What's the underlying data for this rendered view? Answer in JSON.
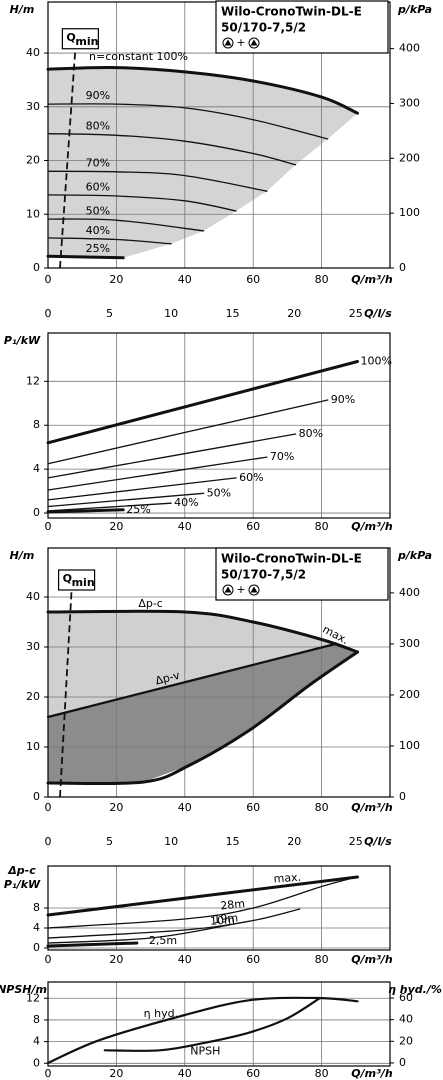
{
  "chart_data": [
    {
      "type": "line",
      "title": "Wilo-CronoTwin-DL-E",
      "subtitle": "50/170-7,5/2",
      "symbol_join": "+",
      "ylabel": "H/m",
      "y2label": "p/kPa",
      "xlabel": "Q/m³/h",
      "x2label": "Q/l/s",
      "xlim": [
        0,
        100
      ],
      "xticks": [
        0,
        20,
        40,
        60,
        80
      ],
      "x2lim": [
        0,
        27.78
      ],
      "x2ticks": [
        0,
        5,
        10,
        15,
        20,
        25
      ],
      "ylim": [
        0,
        49.5
      ],
      "yticks": [
        0,
        10,
        20,
        30,
        40
      ],
      "y2lim": [
        0,
        485
      ],
      "y2ticks": [
        0,
        100,
        200,
        300,
        400
      ],
      "grid": true,
      "qmin": {
        "label": "Q",
        "sub": "min",
        "x": [
          3.5,
          8
        ],
        "y": [
          0,
          40.8
        ]
      },
      "areas": [
        {
          "color": "#d4d4d4",
          "x": [
            0,
            20,
            40,
            60,
            80,
            90.5,
            81.8,
            72.4,
            64,
            55,
            45.5,
            36,
            22,
            0
          ],
          "values": [
            37,
            37.3,
            36.5,
            34.8,
            31.8,
            28.8,
            24,
            19.2,
            14.3,
            10.6,
            6.9,
            4.5,
            1.9,
            2.2
          ]
        }
      ],
      "series": [
        {
          "name": "n=constant 100%",
          "color": "#111111",
          "width": 3,
          "x": [
            0,
            20,
            40,
            60,
            80,
            90.5
          ],
          "values": [
            37,
            37.3,
            36.5,
            34.8,
            31.8,
            28.8
          ]
        },
        {
          "name": "90%",
          "color": "#111111",
          "width": 1.3,
          "x": [
            0,
            20,
            40,
            60,
            81.8
          ],
          "values": [
            30.5,
            30.5,
            29.8,
            27.6,
            24
          ]
        },
        {
          "name": "80%",
          "color": "#111111",
          "width": 1.3,
          "x": [
            0,
            20,
            40,
            60,
            72.4
          ],
          "values": [
            25,
            24.7,
            23.6,
            21.3,
            19.2
          ]
        },
        {
          "name": "70%",
          "color": "#111111",
          "width": 1.3,
          "x": [
            0,
            20,
            40,
            64
          ],
          "values": [
            18,
            17.9,
            17.2,
            14.3
          ]
        },
        {
          "name": "60%",
          "color": "#111111",
          "width": 1.3,
          "x": [
            0,
            20,
            40,
            55
          ],
          "values": [
            13.6,
            13.4,
            12.5,
            10.6
          ]
        },
        {
          "name": "50%",
          "color": "#111111",
          "width": 1.3,
          "x": [
            0,
            20,
            45.5
          ],
          "values": [
            9.1,
            8.9,
            6.9
          ]
        },
        {
          "name": "40%",
          "color": "#111111",
          "width": 1.3,
          "x": [
            0,
            20,
            36
          ],
          "values": [
            5.6,
            5.3,
            4.5
          ]
        },
        {
          "name": "25%",
          "color": "#111111",
          "width": 3,
          "x": [
            0,
            22
          ],
          "values": [
            2.2,
            1.9
          ]
        }
      ]
    },
    {
      "type": "line",
      "ylabel": "P₁/kW",
      "xlabel": "Q/m³/h",
      "xlim": [
        0,
        100
      ],
      "xticks": [
        0,
        20,
        40,
        60,
        80
      ],
      "ylim": [
        -0.45,
        16.4
      ],
      "yticks": [
        0,
        4,
        8,
        12
      ],
      "grid": true,
      "series": [
        {
          "name": "100%",
          "color": "#111111",
          "width": 3,
          "x": [
            0,
            90.5
          ],
          "values": [
            6.4,
            13.8
          ]
        },
        {
          "name": "90%",
          "color": "#111111",
          "width": 1.3,
          "x": [
            0,
            81.8
          ],
          "values": [
            4.5,
            10.3
          ]
        },
        {
          "name": "80%",
          "color": "#111111",
          "width": 1.3,
          "x": [
            0,
            72.4
          ],
          "values": [
            3.2,
            7.2
          ]
        },
        {
          "name": "70%",
          "color": "#111111",
          "width": 1.3,
          "x": [
            0,
            64
          ],
          "values": [
            2.1,
            5.1
          ]
        },
        {
          "name": "60%",
          "color": "#111111",
          "width": 1.3,
          "x": [
            0,
            55
          ],
          "values": [
            1.2,
            3.2
          ]
        },
        {
          "name": "50%",
          "color": "#111111",
          "width": 1.3,
          "x": [
            0,
            45.5
          ],
          "values": [
            0.6,
            1.8
          ]
        },
        {
          "name": "40%",
          "color": "#111111",
          "width": 1.3,
          "x": [
            0,
            36
          ],
          "values": [
            0.2,
            0.9
          ]
        },
        {
          "name": "25%",
          "color": "#111111",
          "width": 3,
          "x": [
            0,
            22
          ],
          "values": [
            0.1,
            0.3
          ]
        }
      ]
    },
    {
      "type": "line",
      "title": "Wilo-CronoTwin-DL-E",
      "subtitle": "50/170-7,5/2",
      "symbol_join": "+",
      "ylabel": "H/m",
      "y2label": "p/kPa",
      "xlabel": "Q/m³/h",
      "x2label": "Q/l/s",
      "annotation": "max.",
      "xlim": [
        0,
        100
      ],
      "xticks": [
        0,
        20,
        40,
        60,
        80
      ],
      "x2lim": [
        0,
        27.78
      ],
      "x2ticks": [
        0,
        5,
        10,
        15,
        20,
        25
      ],
      "ylim": [
        0,
        49.8
      ],
      "yticks": [
        0,
        10,
        20,
        30,
        40
      ],
      "y2lim": [
        0,
        488
      ],
      "y2ticks": [
        0,
        100,
        200,
        300,
        400
      ],
      "grid": true,
      "qmin": {
        "label": "Q",
        "sub": "min",
        "x": [
          3.5,
          6.9
        ],
        "y": [
          0,
          41.4
        ]
      },
      "areas": [
        {
          "color": "#d0d0d0",
          "x": [
            0,
            40,
            60,
            80,
            84,
            0
          ],
          "values": [
            37,
            37,
            35,
            31.5,
            30.6,
            16
          ]
        },
        {
          "color": "#8c8c8c",
          "x": [
            0,
            84,
            90.5,
            76.5,
            59,
            41.5,
            28,
            0
          ],
          "values": [
            16,
            30.6,
            29,
            22.4,
            13.4,
            6.4,
            3,
            2.8
          ]
        }
      ],
      "series": [
        {
          "name": "Δp-c",
          "color": "#111111",
          "width": 3,
          "x": [
            0,
            40,
            60,
            80,
            90.5
          ],
          "values": [
            37,
            37,
            35,
            31.5,
            29
          ]
        },
        {
          "name": "Δp-v",
          "color": "#111111",
          "width": 2.2,
          "x": [
            0,
            84
          ],
          "values": [
            16,
            30.6
          ]
        },
        {
          "color": "#111111",
          "width": 3,
          "x": [
            0,
            28,
            41.5,
            59,
            76.5,
            90.5
          ],
          "values": [
            2.8,
            3,
            6.4,
            13.4,
            22.4,
            29
          ]
        }
      ]
    },
    {
      "type": "line",
      "ylabel_top": "Δp-c",
      "ylabel": "P₁/kW",
      "xlabel": "Q/m³/h",
      "xlim": [
        0,
        100
      ],
      "xticks": [
        0,
        20,
        40,
        60,
        80
      ],
      "ylim": [
        -0.4,
        16.4
      ],
      "yticks": [
        0,
        4,
        8
      ],
      "grid": true,
      "series": [
        {
          "name": "max.",
          "color": "#111111",
          "width": 3,
          "x": [
            0,
            90.5
          ],
          "values": [
            6.6,
            14.2
          ]
        },
        {
          "name": "28m",
          "color": "#111111",
          "width": 1.3,
          "x": [
            0,
            40,
            60,
            80,
            88
          ],
          "values": [
            4,
            5.8,
            8,
            12.3,
            13.8
          ]
        },
        {
          "name": "19m",
          "color": "#111111",
          "width": 1.3,
          "x": [
            0,
            40,
            60,
            73.6
          ],
          "values": [
            2,
            3.6,
            5.5,
            7.8
          ]
        },
        {
          "name": "10m",
          "color": "#111111",
          "width": 1.3,
          "x": [
            0,
            30,
            53
          ],
          "values": [
            1,
            2,
            4.6
          ]
        },
        {
          "name": "2,5m",
          "color": "#111111",
          "width": 3,
          "x": [
            0,
            26
          ],
          "values": [
            0.4,
            1
          ]
        }
      ]
    },
    {
      "type": "line",
      "ylabel": "NPSH/m",
      "y2label": "η hyd./%",
      "xlabel": "Q/m³/h",
      "xlim": [
        0,
        100
      ],
      "xticks": [
        0,
        20,
        40,
        60,
        80
      ],
      "ylim": [
        -0.5,
        15
      ],
      "yticks": [
        0,
        4,
        8,
        12
      ],
      "y2lim": [
        -2.8,
        74.8
      ],
      "y2ticks": [
        0,
        20,
        40,
        60
      ],
      "grid": true,
      "series": [
        {
          "name": "η hyd.",
          "axis": "y2",
          "color": "#111111",
          "width": 2.2,
          "x": [
            0,
            15,
            38.5,
            59,
            79,
            90.5
          ],
          "values": [
            0,
            21,
            43,
            58,
            60,
            57
          ]
        },
        {
          "name": "NPSH",
          "color": "#111111",
          "width": 2.2,
          "x": [
            16.6,
            32.7,
            46,
            59,
            70,
            79.4
          ],
          "values": [
            2.4,
            2.4,
            3.8,
            5.7,
            8.3,
            12
          ]
        }
      ]
    }
  ]
}
